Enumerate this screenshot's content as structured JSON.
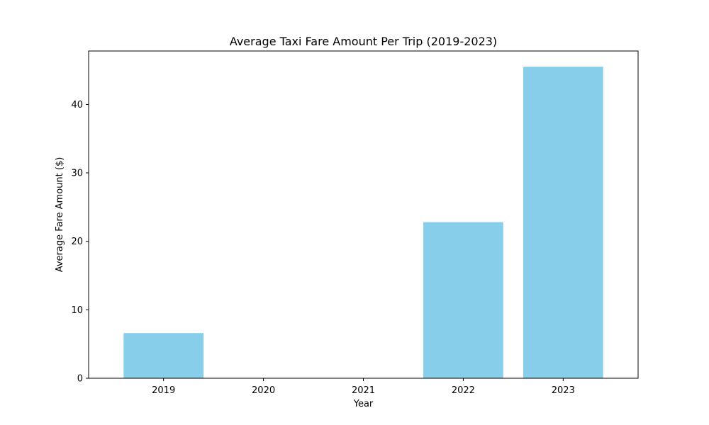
{
  "chart_data": {
    "type": "bar",
    "title": "Average Taxi Fare Amount Per Trip (2019-2023)",
    "xlabel": "Year",
    "ylabel": "Average Fare Amount ($)",
    "categories": [
      "2019",
      "2020",
      "2021",
      "2022",
      "2023"
    ],
    "values": [
      6.6,
      0,
      0,
      22.8,
      45.5
    ],
    "ylim": [
      0,
      47.8
    ],
    "yticks": [
      0,
      10,
      20,
      30,
      40
    ],
    "grid": false,
    "legend": "none",
    "bar_color": "#87CEEB"
  }
}
